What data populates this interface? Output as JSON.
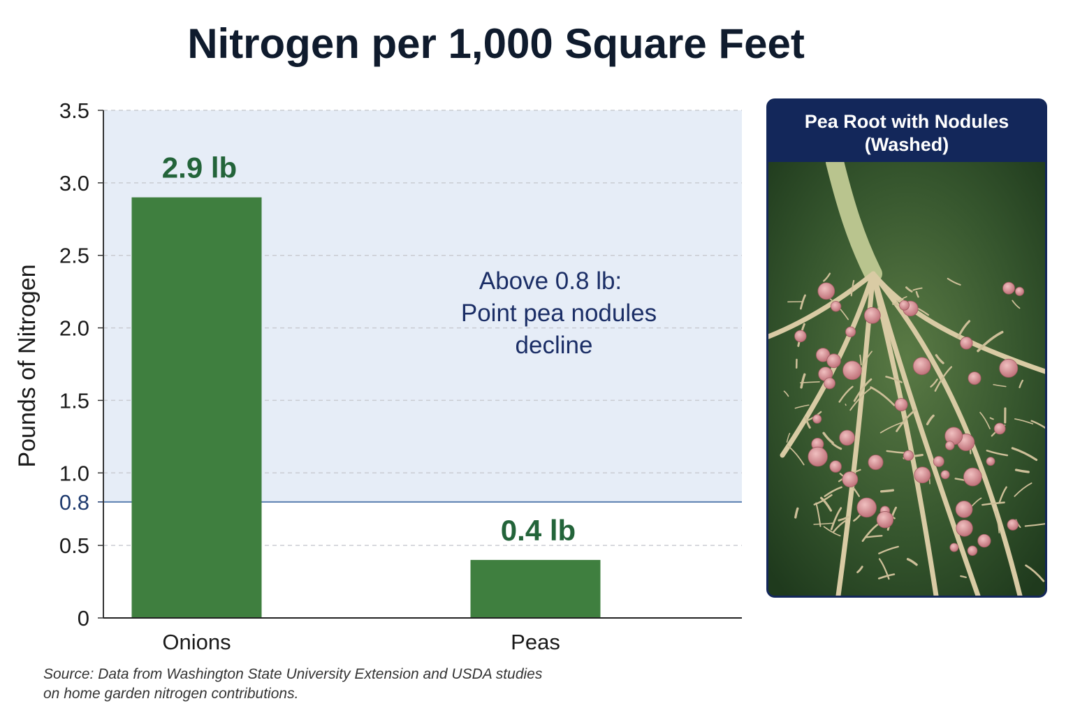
{
  "title": "Nitrogen per 1,000 Square Feet",
  "chart_data": {
    "type": "bar",
    "title": "Nitrogen per 1,000 Square Feet",
    "xlabel": "",
    "ylabel": "Pounds of Nitrogen",
    "categories": [
      "Onions",
      "Peas"
    ],
    "values": [
      2.9,
      0.4
    ],
    "data_labels": [
      "2.9 lb",
      "0.4 lb"
    ],
    "ylim": [
      0,
      3.5
    ],
    "yticks": [
      {
        "value": 0,
        "label": "0"
      },
      {
        "value": 0.5,
        "label": "0.5"
      },
      {
        "value": 1.0,
        "label": "1.0"
      },
      {
        "value": 1.5,
        "label": "1.5"
      },
      {
        "value": 2.0,
        "label": "2.0"
      },
      {
        "value": 2.5,
        "label": "2.5"
      },
      {
        "value": 3.0,
        "label": "3.0"
      },
      {
        "value": 3.5,
        "label": "3.5"
      }
    ],
    "threshold": {
      "value": 0.8,
      "label": "0.8"
    },
    "annotation": [
      "Above 0.8 lb:",
      "Point pea nodules",
      "decline"
    ],
    "grid": true,
    "colors": {
      "bar": "#3f7f3f",
      "shade": "#e6edf7",
      "threshold_line": "#5a7fb0",
      "label": "#23643a",
      "annotation": "#1b2e66"
    }
  },
  "photo": {
    "title_line1": "Pea Root with Nodules",
    "title_line2": "(Washed)",
    "header_color": "#13275a"
  },
  "source": {
    "line1": "Source: Data from Washington State University Extension and USDA studies",
    "line2": "on home garden nitrogen contributions."
  }
}
